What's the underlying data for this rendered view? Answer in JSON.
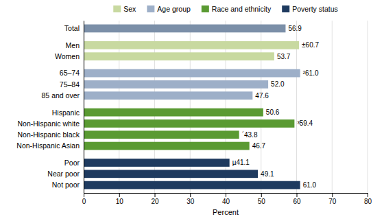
{
  "chart_data": {
    "type": "bar",
    "orientation": "horizontal",
    "x_label": "Percent",
    "categories": [
      "Total",
      "Men",
      "Women",
      "65–74",
      "75–84",
      "85 and over",
      "Hispanic",
      "Non-Hispanic white",
      "Non-Hispanic black",
      "Non-Hispanic Asian",
      "Poor",
      "Near poor",
      "Not poor"
    ],
    "series": [
      {
        "color": "#7b8fa8",
        "values": [
          56.9,
          null,
          null,
          null,
          null,
          null,
          null,
          null,
          null,
          null,
          null,
          null,
          null
        ],
        "value_labels": [
          "56.9",
          null,
          null,
          null,
          null,
          null,
          null,
          null,
          null,
          null,
          null,
          null,
          null
        ]
      },
      {
        "name": "Sex",
        "color": "#c8d9a0",
        "values": [
          null,
          60.7,
          53.7,
          null,
          null,
          null,
          null,
          null,
          null,
          null,
          null,
          null,
          null
        ],
        "value_labels": [
          null,
          "±60.7",
          "53.7",
          null,
          null,
          null,
          null,
          null,
          null,
          null,
          null,
          null,
          null
        ]
      },
      {
        "name": "Age group",
        "color": "#9dafc8",
        "values": [
          null,
          null,
          null,
          61.0,
          52.0,
          47.6,
          null,
          null,
          null,
          null,
          null,
          null,
          null
        ],
        "value_labels": [
          null,
          null,
          null,
          "²61.0",
          "52.0",
          "47.6",
          null,
          null,
          null,
          null,
          null,
          null,
          null
        ]
      },
      {
        "name": "Race and ethnicity",
        "color": "#5a9a32",
        "values": [
          null,
          null,
          null,
          null,
          null,
          null,
          50.6,
          59.4,
          43.8,
          46.7,
          null,
          null,
          null
        ],
        "value_labels": [
          null,
          null,
          null,
          null,
          null,
          null,
          "50.6",
          "³59.4",
          "´43.8",
          "46.7",
          null,
          null,
          null
        ]
      },
      {
        "name": "Poverty status",
        "color": "#1e3a5f",
        "values": [
          null,
          null,
          null,
          null,
          null,
          null,
          null,
          null,
          null,
          null,
          41.1,
          49.1,
          61.0
        ],
        "value_labels": [
          null,
          null,
          null,
          null,
          null,
          null,
          null,
          null,
          null,
          null,
          "µ41.1",
          "49.1",
          "61.0"
        ]
      }
    ],
    "xlim": [
      0,
      80
    ],
    "xticks": [
      0,
      10,
      20,
      30,
      40,
      50,
      60,
      70,
      80
    ],
    "grid": true,
    "legend": "top",
    "data_labels": true
  }
}
